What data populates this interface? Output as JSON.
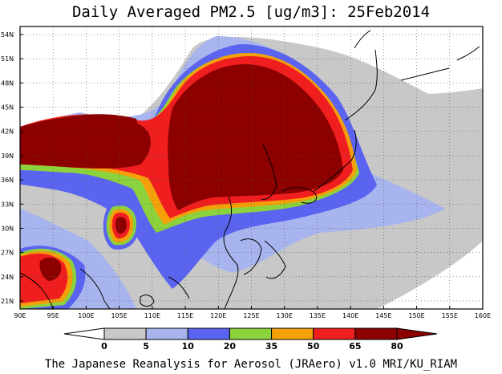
{
  "title": "Daily Averaged PM2.5 [ug/m3]: 25Feb2014",
  "credit": "The Japanese Reanalysis for Aerosol (JRAero) v1.0 MRI/KU_RIAM",
  "map": {
    "lon_range": [
      90,
      160
    ],
    "lat_range": [
      20,
      55
    ],
    "lon_ticks": [
      "90E",
      "95E",
      "100E",
      "105E",
      "110E",
      "115E",
      "120E",
      "125E",
      "130E",
      "135E",
      "140E",
      "145E",
      "150E",
      "155E",
      "160E"
    ],
    "lat_ticks": [
      "54N",
      "51N",
      "48N",
      "45N",
      "42N",
      "39N",
      "36N",
      "33N",
      "30N",
      "27N",
      "24N",
      "21N"
    ],
    "lon_tick_values": [
      90,
      95,
      100,
      105,
      110,
      115,
      120,
      125,
      130,
      135,
      140,
      145,
      150,
      155,
      160
    ],
    "lat_tick_values": [
      54,
      51,
      48,
      45,
      42,
      39,
      36,
      33,
      30,
      27,
      24,
      21
    ],
    "grid": "dotted"
  },
  "colorbar": {
    "levels": [
      "0",
      "5",
      "10",
      "20",
      "35",
      "50",
      "65",
      "80"
    ],
    "colors": [
      "#ffffff",
      "#c8c8c8",
      "#a8b4ee",
      "#5a64f0",
      "#8cd23c",
      "#f5a00a",
      "#f01e1e",
      "#8c0000"
    ],
    "arrow_left_color": "#ffffff",
    "arrow_right_color": "#8c0000"
  },
  "concentration_colors": {
    "grey": "#c8c8c8",
    "light_blue": "#a8b4ee",
    "blue": "#5a64f0",
    "green": "#8cd23c",
    "orange": "#f5a00a",
    "red": "#f01e1e",
    "darkred": "#8c0000"
  }
}
